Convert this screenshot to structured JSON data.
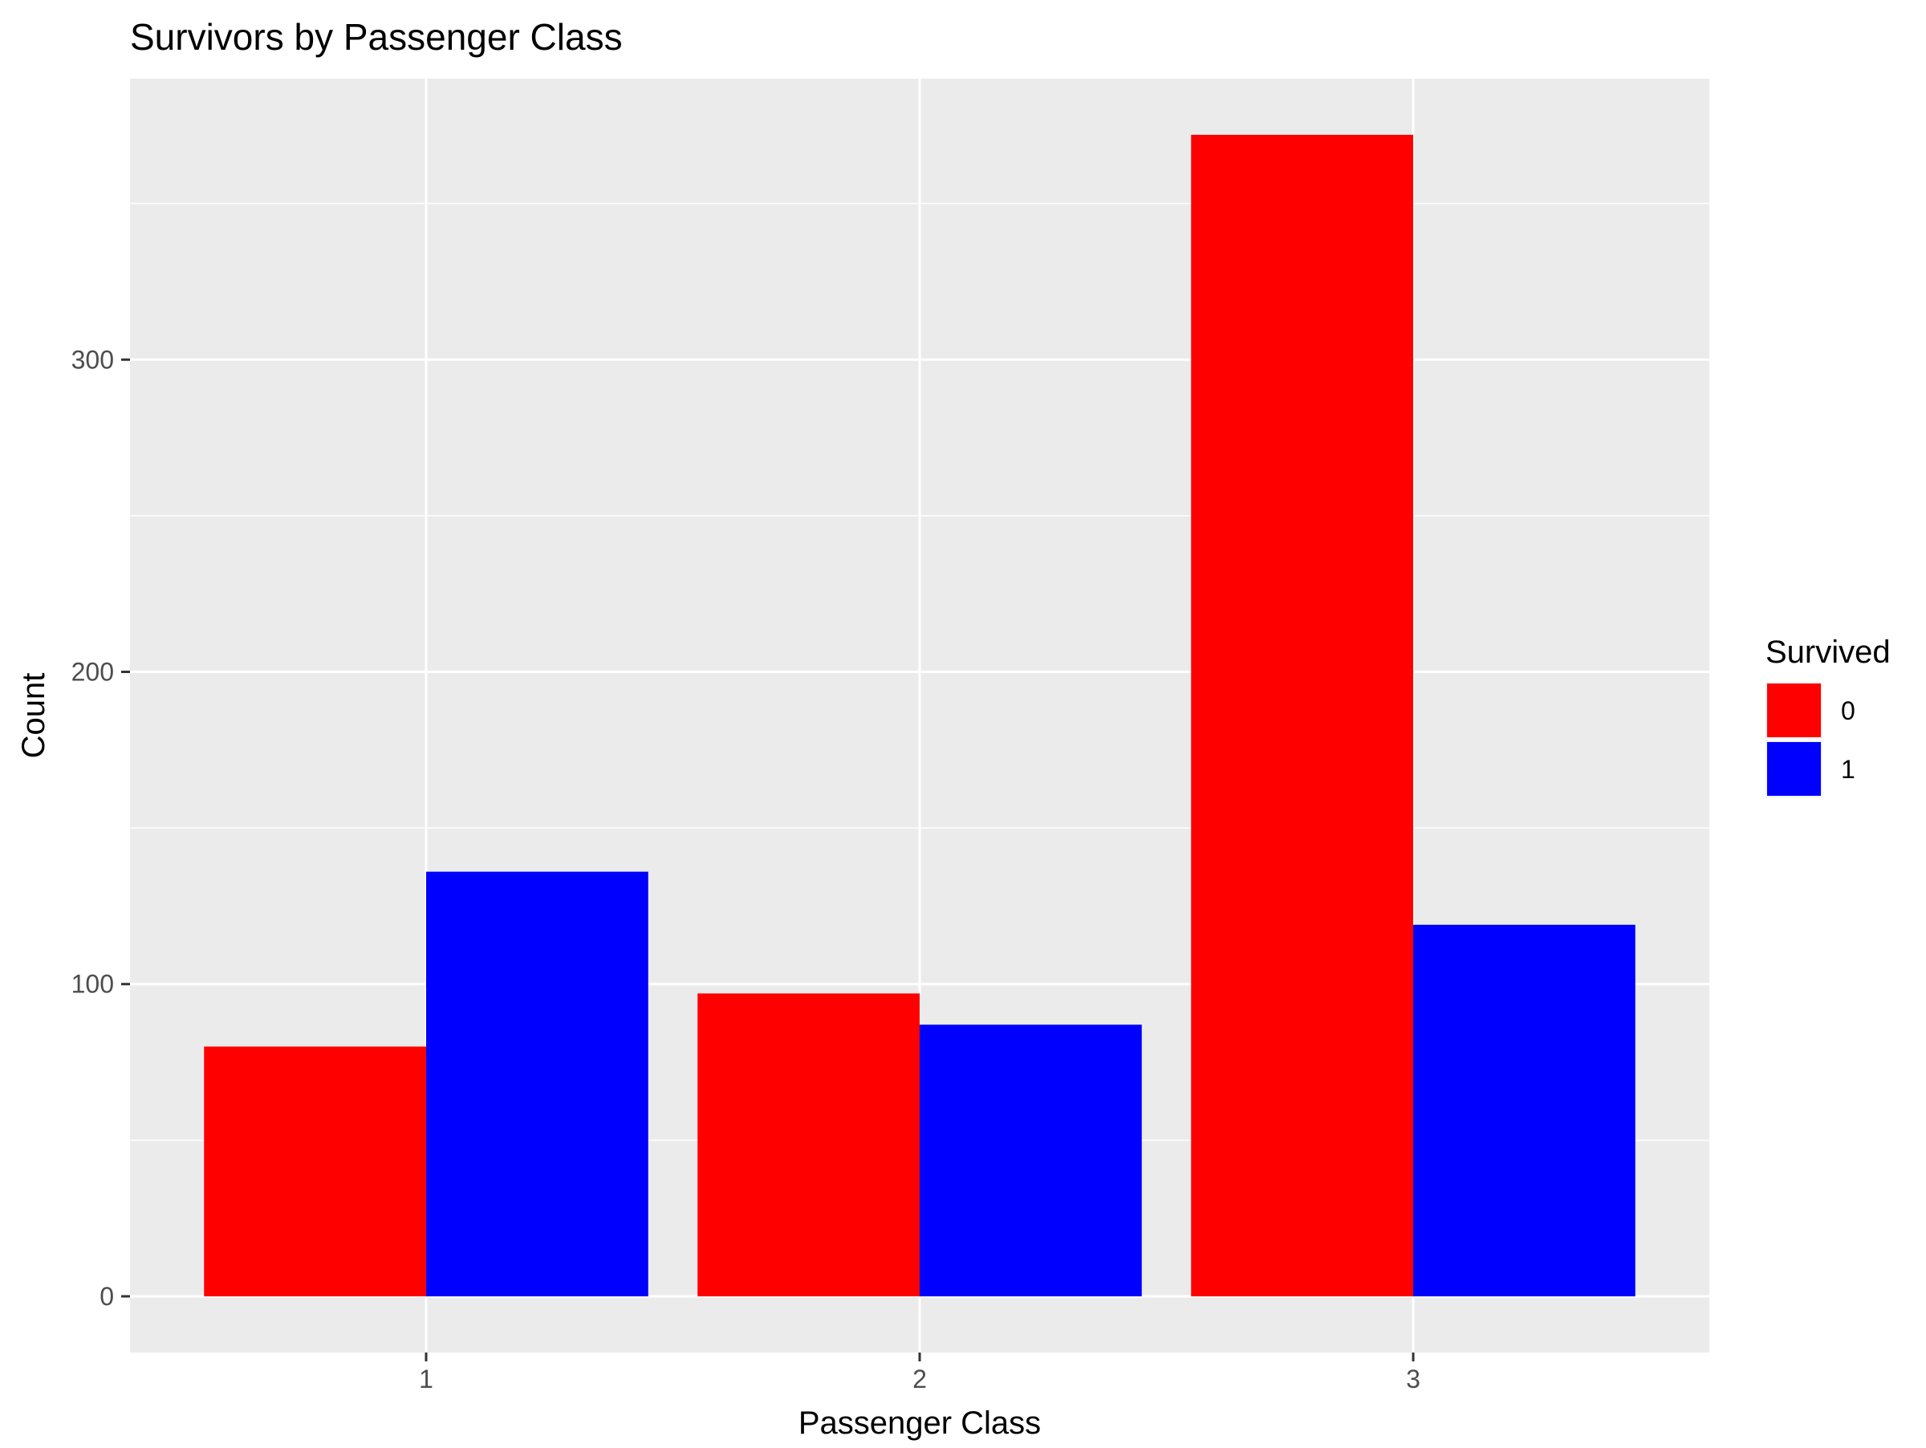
{
  "chart_data": {
    "type": "bar",
    "title": "Survivors by Passenger Class",
    "xlabel": "Passenger Class",
    "ylabel": "Count",
    "categories": [
      "1",
      "2",
      "3"
    ],
    "series": [
      {
        "name": "0",
        "values": [
          80,
          97,
          372
        ]
      },
      {
        "name": "1",
        "values": [
          136,
          87,
          119
        ]
      }
    ],
    "ylim": [
      -18,
      390
    ],
    "yticks": [
      0,
      100,
      200,
      300
    ],
    "yticks_labels": [
      "0",
      "100",
      "200",
      "300"
    ],
    "y_minor_ticks": [
      50,
      150,
      250,
      350
    ],
    "grid": true,
    "legend": {
      "title": "Survived",
      "placement": "right"
    }
  },
  "colors": {
    "panel_background": "#EBEBEB",
    "grid": "#FFFFFF",
    "series": [
      "#FF0000",
      "#0000FF"
    ]
  }
}
